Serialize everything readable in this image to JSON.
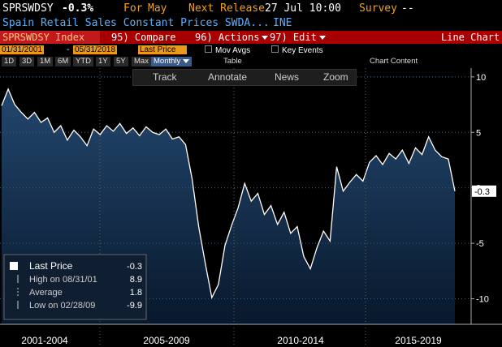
{
  "header": {
    "ticker": "SPRSWDSY",
    "change": "-0.3%",
    "for_label": "For",
    "for_value": "May",
    "release_label": "Next Release",
    "release_value": "27 Jul 10:00",
    "survey_label": "Survey",
    "survey_value": "--",
    "description": "Spain Retail Sales Constant Prices SWDA...",
    "source": "INE"
  },
  "toolbar": {
    "security": "SPRSWDSY Index",
    "compare": "95) Compare",
    "actions": "96) Actions",
    "edit": "97) Edit",
    "view": "Line Chart"
  },
  "range": {
    "start": "01/31/2001",
    "separator": "-",
    "end": "05/31/2018",
    "field": "Last Price",
    "mov_avgs": "Mov Avgs",
    "key_events": "Key Events"
  },
  "periods": [
    "1D",
    "3D",
    "1M",
    "6M",
    "YTD",
    "1Y",
    "5Y",
    "Max"
  ],
  "frequency": "Monthly",
  "table": "Table",
  "chart_content": "Chart Content",
  "chart_tools": [
    "Track",
    "Annotate",
    "News",
    "Zoom"
  ],
  "chart_data": {
    "type": "line",
    "color": "#ffffff",
    "values": [
      7.4,
      8.9,
      7.5,
      6.8,
      6.2,
      6.8,
      5.9,
      6.3,
      5.0,
      5.6,
      4.3,
      5.2,
      4.6,
      3.8,
      5.3,
      4.8,
      5.6,
      5.1,
      5.8,
      4.9,
      5.4,
      4.7,
      5.5,
      5.0,
      4.8,
      5.3,
      4.4,
      4.6,
      3.9,
      0.8,
      -3.5,
      -6.8,
      -9.9,
      -8.7,
      -5.2,
      -3.4,
      -1.8,
      0.4,
      -1.2,
      -0.5,
      -2.4,
      -1.6,
      -3.3,
      -2.2,
      -4.1,
      -3.5,
      -6.2,
      -7.3,
      -5.4,
      -3.9,
      -4.8,
      1.9,
      -0.3,
      0.5,
      1.2,
      0.6,
      2.3,
      2.9,
      2.1,
      3.1,
      2.6,
      3.4,
      2.2,
      3.6,
      3.0,
      4.6,
      3.4,
      2.8,
      2.6,
      -0.3
    ],
    "x_labels": [
      "2001-2004",
      "2005-2009",
      "2010-2014",
      "2015-2019"
    ],
    "ylim": [
      -12.3,
      10.5
    ],
    "yticks": [
      10,
      5,
      0,
      -5,
      -10
    ],
    "grid": true,
    "legend": [
      {
        "label": "Last Price",
        "value": -0.3
      },
      {
        "label": "High on 08/31/01",
        "value": 8.9
      },
      {
        "label": "Average",
        "value": 1.8
      },
      {
        "label": "Low on 02/28/09",
        "value": -9.9
      }
    ]
  }
}
